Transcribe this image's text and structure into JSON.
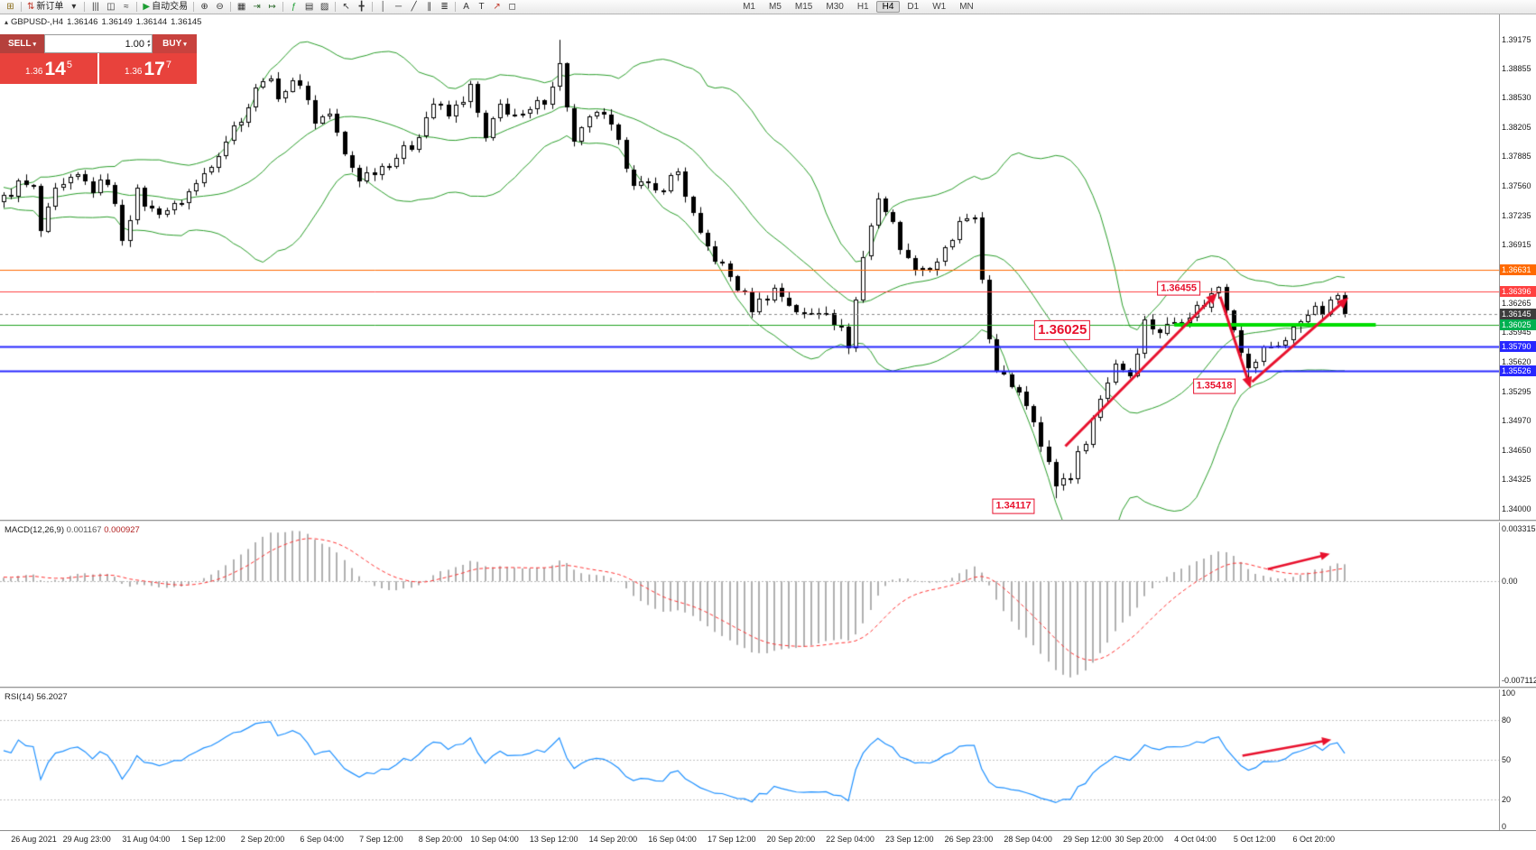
{
  "toolbar": {
    "groups": [
      {
        "items": [
          {
            "n": "new-chart",
            "g": "⊞",
            "c": "#8a6d1a"
          }
        ]
      },
      {
        "items": [
          {
            "n": "new-order",
            "g": "⇅",
            "c": "#c0392b",
            "label": "新订单"
          },
          {
            "n": "new-order-menu",
            "g": "▾",
            "c": "#333333"
          }
        ]
      },
      {
        "items": [
          {
            "n": "bar-chart",
            "g": "|||",
            "c": "#333333"
          },
          {
            "n": "candlestick-chart",
            "g": "◫",
            "c": "#333333"
          },
          {
            "n": "line-chart",
            "g": "≈",
            "c": "#333333"
          }
        ]
      },
      {
        "items": [
          {
            "n": "autotrading",
            "g": "▶",
            "c": "#1d9e33",
            "label": "自动交易"
          }
        ]
      },
      {
        "items": [
          {
            "n": "zoom-in",
            "g": "⊕",
            "c": "#333333"
          },
          {
            "n": "zoom-out",
            "g": "⊖",
            "c": "#333333"
          }
        ]
      },
      {
        "items": [
          {
            "n": "tile-windows",
            "g": "▦",
            "c": "#333333"
          },
          {
            "n": "auto-scroll",
            "g": "⇥",
            "c": "#2d6a2d"
          },
          {
            "n": "chart-shift",
            "g": "↦",
            "c": "#2d6a2d"
          }
        ]
      },
      {
        "items": [
          {
            "n": "indicators",
            "g": "ƒ",
            "c": "#1d9e33"
          },
          {
            "n": "periods",
            "g": "▤",
            "c": "#333333"
          },
          {
            "n": "templates",
            "g": "▨",
            "c": "#333333"
          }
        ]
      },
      {
        "items": [
          {
            "n": "cursor",
            "g": "↖",
            "c": "#333333"
          },
          {
            "n": "crosshair",
            "g": "╋",
            "c": "#333333"
          }
        ]
      },
      {
        "items": [
          {
            "n": "vertical-line",
            "g": "│",
            "c": "#333333"
          },
          {
            "n": "horizontal-line",
            "g": "─",
            "c": "#333333"
          },
          {
            "n": "trendline",
            "g": "╱",
            "c": "#333333"
          },
          {
            "n": "equidistant-channel",
            "g": "∥",
            "c": "#333333"
          },
          {
            "n": "fibonacci",
            "g": "≣",
            "c": "#333333"
          }
        ]
      },
      {
        "items": [
          {
            "n": "text",
            "g": "A",
            "c": "#333333"
          },
          {
            "n": "text-label",
            "g": "T",
            "c": "#333333"
          },
          {
            "n": "arrows-tool",
            "g": "↗",
            "c": "#c0392b"
          },
          {
            "n": "shapes",
            "g": "◻",
            "c": "#333333"
          }
        ]
      }
    ],
    "timeframes": [
      {
        "l": "M1"
      },
      {
        "l": "M5"
      },
      {
        "l": "M15"
      },
      {
        "l": "M30"
      },
      {
        "l": "H1"
      },
      {
        "l": "H4",
        "active": true
      },
      {
        "l": "D1"
      },
      {
        "l": "W1"
      },
      {
        "l": "MN"
      }
    ]
  },
  "symbol_info": {
    "collapse_icon": "▴",
    "symbol": "GBPUSD-,H4",
    "open": "1.36146",
    "high": "1.36149",
    "low": "1.36144",
    "close": "1.36145"
  },
  "one_click": {
    "sell_label": "SELL",
    "buy_label": "BUY",
    "volume": "1.00",
    "bid_prefix": "1.36",
    "bid_main": "14",
    "bid_sup": "5",
    "ask_prefix": "1.36",
    "ask_main": "17",
    "ask_sup": "7",
    "sell_color": "#b5403c",
    "buy_color": "#c8423e",
    "price_bg": "#e8423c"
  },
  "price_scale": {
    "ticks": [
      {
        "label": "1.39175",
        "price": 1.39175
      },
      {
        "label": "1.38855",
        "price": 1.38855
      },
      {
        "label": "1.38530",
        "price": 1.3853
      },
      {
        "label": "1.38205",
        "price": 1.38205
      },
      {
        "label": "1.37885",
        "price": 1.37885
      },
      {
        "label": "1.37560",
        "price": 1.3756
      },
      {
        "label": "1.37235",
        "price": 1.37235
      },
      {
        "label": "1.36915",
        "price": 1.36915
      },
      {
        "label": "1.36265",
        "price": 1.36265
      },
      {
        "label": "1.35945",
        "price": 1.35945
      },
      {
        "label": "1.35620",
        "price": 1.3562
      },
      {
        "label": "1.35295",
        "price": 1.35295
      },
      {
        "label": "1.34970",
        "price": 1.3497
      },
      {
        "label": "1.34650",
        "price": 1.3465
      },
      {
        "label": "1.34325",
        "price": 1.34325
      },
      {
        "label": "1.34000",
        "price": 1.34
      }
    ],
    "badges": [
      {
        "label": "1.36631",
        "price": 1.36631,
        "color": "#ff6a00"
      },
      {
        "label": "1.36396",
        "price": 1.36396,
        "color": "#ff4040"
      },
      {
        "label": "1.36145",
        "price": 1.36145,
        "color": "#3d3d3d"
      },
      {
        "label": "1.36025",
        "price": 1.36025,
        "color": "#00b050"
      },
      {
        "label": "1.35790",
        "price": 1.3579,
        "color": "#2727ff"
      },
      {
        "label": "1.35526",
        "price": 1.35526,
        "color": "#2727ff"
      }
    ]
  },
  "macd_panel": {
    "label": "MACD(12,26,9)",
    "value_main": "0.001167",
    "value_signal": "0.000927",
    "scale_top": "0.003315",
    "scale_zero": "0.00",
    "scale_bottom": "-0.007112",
    "bar_color": "#b0b0b0",
    "signal_color": "#ff3333"
  },
  "rsi_panel": {
    "label": "RSI(14)",
    "value": "56.2027",
    "line_color": "#1e90ff",
    "levels": [
      {
        "label": "100",
        "v": 100
      },
      {
        "label": "80",
        "v": 80
      },
      {
        "label": "50",
        "v": 50
      },
      {
        "label": "20",
        "v": 20
      },
      {
        "label": "0",
        "v": 0
      }
    ],
    "dotted_levels": [
      80,
      50,
      20
    ]
  },
  "time_axis": [
    {
      "i": 1,
      "t": "26 Aug 2021"
    },
    {
      "i": 8,
      "t": "29 Aug 23:00"
    },
    {
      "i": 16,
      "t": "31 Aug 04:00"
    },
    {
      "i": 24,
      "t": "1 Sep 12:00"
    },
    {
      "i": 32,
      "t": "2 Sep 20:00"
    },
    {
      "i": 40,
      "t": "6 Sep 04:00"
    },
    {
      "i": 48,
      "t": "7 Sep 12:00"
    },
    {
      "i": 56,
      "t": "8 Sep 20:00"
    },
    {
      "i": 63,
      "t": "10 Sep 04:00"
    },
    {
      "i": 71,
      "t": "13 Sep 12:00"
    },
    {
      "i": 79,
      "t": "14 Sep 20:00"
    },
    {
      "i": 87,
      "t": "16 Sep 04:00"
    },
    {
      "i": 95,
      "t": "17 Sep 12:00"
    },
    {
      "i": 103,
      "t": "20 Sep 20:00"
    },
    {
      "i": 111,
      "t": "22 Sep 04:00"
    },
    {
      "i": 119,
      "t": "23 Sep 12:00"
    },
    {
      "i": 127,
      "t": "26 Sep 23:00"
    },
    {
      "i": 135,
      "t": "28 Sep 04:00"
    },
    {
      "i": 143,
      "t": "29 Sep 12:00"
    },
    {
      "i": 150,
      "t": "30 Sep 20:00"
    },
    {
      "i": 158,
      "t": "4 Oct 04:00"
    },
    {
      "i": 166,
      "t": "5 Oct 12:00"
    },
    {
      "i": 174,
      "t": "6 Oct 20:00"
    }
  ],
  "chart_data": {
    "type": "candlestick+indicators",
    "symbol": "GBPUSD-",
    "timeframe": "H4",
    "price_axis": {
      "top": 1.3945,
      "bottom": 1.3388
    },
    "candles": {
      "count_visible": 182,
      "noise_amp": 0.0007,
      "anchors": [
        [
          -26,
          1.373
        ],
        [
          -20,
          1.3752
        ],
        [
          -14,
          1.3736
        ],
        [
          -8,
          1.3748
        ],
        [
          -3,
          1.374
        ],
        [
          0,
          1.3742
        ],
        [
          2,
          1.3758
        ],
        [
          4,
          1.3752
        ],
        [
          5,
          1.3705
        ],
        [
          7,
          1.3748
        ],
        [
          10,
          1.3765
        ],
        [
          12,
          1.3752
        ],
        [
          14,
          1.3762
        ],
        [
          16,
          1.37
        ],
        [
          18,
          1.3748
        ],
        [
          20,
          1.3728
        ],
        [
          23,
          1.3732
        ],
        [
          26,
          1.3758
        ],
        [
          30,
          1.3808
        ],
        [
          33,
          1.3845
        ],
        [
          35,
          1.3878
        ],
        [
          37,
          1.3858
        ],
        [
          40,
          1.3872
        ],
        [
          42,
          1.3828
        ],
        [
          44,
          1.3836
        ],
        [
          46,
          1.3788
        ],
        [
          48,
          1.3765
        ],
        [
          51,
          1.3778
        ],
        [
          55,
          1.38
        ],
        [
          58,
          1.3848
        ],
        [
          60,
          1.3832
        ],
        [
          63,
          1.3864
        ],
        [
          65,
          1.3806
        ],
        [
          67,
          1.3844
        ],
        [
          70,
          1.383
        ],
        [
          73,
          1.3852
        ],
        [
          75,
          1.3888
        ],
        [
          77,
          1.3802
        ],
        [
          80,
          1.384
        ],
        [
          82,
          1.3818
        ],
        [
          85,
          1.3762
        ],
        [
          88,
          1.3748
        ],
        [
          91,
          1.3772
        ],
        [
          94,
          1.3698
        ],
        [
          98,
          1.3656
        ],
        [
          101,
          1.3622
        ],
        [
          104,
          1.3642
        ],
        [
          108,
          1.3612
        ],
        [
          111,
          1.3622
        ],
        [
          114,
          1.3582
        ],
        [
          116,
          1.3678
        ],
        [
          118,
          1.3745
        ],
        [
          120,
          1.3712
        ],
        [
          122,
          1.3672
        ],
        [
          125,
          1.3665
        ],
        [
          128,
          1.3692
        ],
        [
          129,
          1.3718
        ],
        [
          131,
          1.3714
        ],
        [
          133,
          1.3592
        ],
        [
          134,
          1.3548
        ],
        [
          137,
          1.3532
        ],
        [
          139,
          1.3502
        ],
        [
          140,
          1.3468
        ],
        [
          142,
          1.3428
        ],
        [
          144,
          1.3438
        ],
        [
          146,
          1.3478
        ],
        [
          148,
          1.3522
        ],
        [
          150,
          1.3562
        ],
        [
          152,
          1.3548
        ],
        [
          154,
          1.3606
        ],
        [
          156,
          1.3596
        ],
        [
          159,
          1.3612
        ],
        [
          162,
          1.3626
        ],
        [
          164,
          1.3646
        ],
        [
          166,
          1.3602
        ],
        [
          168,
          1.3552
        ],
        [
          170,
          1.3576
        ],
        [
          173,
          1.3586
        ],
        [
          176,
          1.362
        ],
        [
          178,
          1.3616
        ],
        [
          180,
          1.3636
        ],
        [
          181,
          1.36145
        ]
      ],
      "wick_overrides": [
        {
          "i": 75,
          "high": 1.3917
        },
        {
          "i": 142,
          "low": 1.34117
        },
        {
          "i": 164,
          "high": 1.36455
        },
        {
          "i": 168,
          "low": 1.35418
        }
      ]
    },
    "indicators": {
      "bollinger": {
        "period": 20,
        "deviation": 2,
        "color": "#2a9d2a"
      },
      "macd": {
        "fast": 12,
        "slow": 26,
        "signal": 9
      },
      "rsi": {
        "period": 14
      }
    },
    "hlines": [
      {
        "price": 1.36631,
        "color": "#ff6a00",
        "width": 1,
        "style": "solid"
      },
      {
        "price": 1.36396,
        "color": "#ff4040",
        "width": 1,
        "style": "solid"
      },
      {
        "price": 1.36145,
        "color": "#888888",
        "width": 1,
        "style": "dash"
      },
      {
        "price": 1.36025,
        "color": "#1fa11f",
        "width": 1,
        "style": "solid"
      },
      {
        "price": 1.3579,
        "color": "#2727ff",
        "width": 2,
        "style": "solid"
      },
      {
        "price": 1.35526,
        "color": "#2727ff",
        "width": 2,
        "style": "solid"
      }
    ],
    "lime_segment": {
      "price": 1.36025,
      "from_i": 158,
      "to_i": 185.2,
      "color": "#00dd00",
      "width": 4
    },
    "arrows": {
      "color": "#e8112d",
      "price": [
        {
          "from": [
            143.3,
            1.3469
          ],
          "to": [
            163.8,
            1.3638
          ]
        },
        {
          "from": [
            164.2,
            1.3634
          ],
          "to": [
            168.3,
            1.3533
          ]
        },
        {
          "from": [
            168.5,
            1.354
          ],
          "to": [
            181.5,
            1.3633
          ]
        }
      ],
      "macd": [
        {
          "from": [
            170.6,
            0.0008
          ],
          "to": [
            179.0,
            0.0018
          ]
        }
      ],
      "rsi": [
        {
          "from": [
            167.2,
            53
          ],
          "to": [
            179.2,
            65
          ]
        }
      ]
    },
    "boxes": [
      {
        "i": 158.6,
        "p": 1.3643,
        "text": "1.36455",
        "size": 11
      },
      {
        "i": 142.9,
        "p": 1.3597,
        "text": "1.36025",
        "size": 15
      },
      {
        "i": 163.4,
        "p": 1.3535,
        "text": "1.35418",
        "size": 11
      },
      {
        "i": 136.3,
        "p": 1.3403,
        "text": "1.34117",
        "size": 11
      }
    ]
  }
}
